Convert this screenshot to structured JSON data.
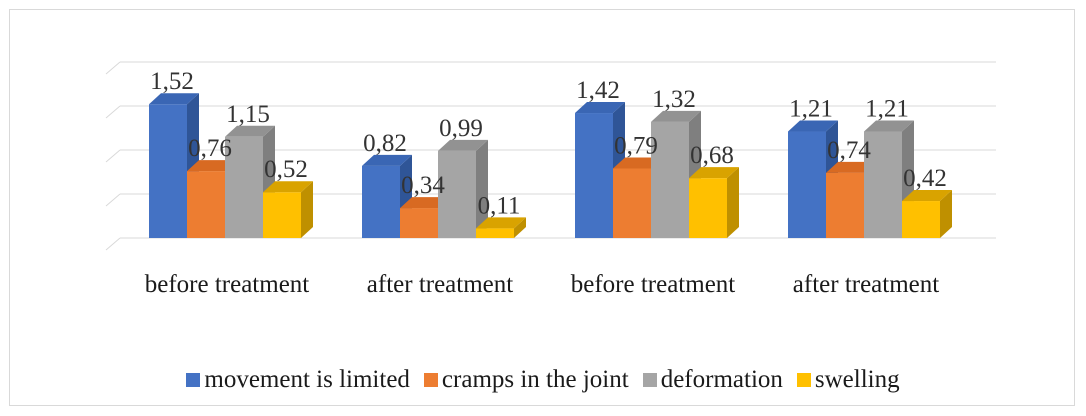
{
  "chart_data": {
    "type": "bar",
    "categories": [
      "before treatment",
      "after treatment",
      "before treatment",
      "after treatment"
    ],
    "series": [
      {
        "name": "movement is limited",
        "values": [
          1.52,
          0.82,
          1.42,
          1.21
        ],
        "labels": [
          "1,52",
          "0,82",
          "1,42",
          "1,21"
        ],
        "color": "#4472c4",
        "side": "#2f5597",
        "top": "#3a66b4"
      },
      {
        "name": "cramps in the joint",
        "values": [
          0.76,
          0.34,
          0.79,
          0.74
        ],
        "labels": [
          "0,76",
          "0,34",
          "0,79",
          "0,74"
        ],
        "color": "#ed7d31",
        "side": "#c55a11",
        "top": "#d86a22"
      },
      {
        "name": "deformation",
        "values": [
          1.15,
          0.99,
          1.32,
          1.21
        ],
        "labels": [
          "1,15",
          "0,99",
          "1,32",
          "1,21"
        ],
        "color": "#a5a5a5",
        "side": "#7f7f7f",
        "top": "#929292"
      },
      {
        "name": "swelling",
        "values": [
          0.52,
          0.11,
          0.68,
          0.42
        ],
        "labels": [
          "0,52",
          "0,11",
          "0,68",
          "0,42"
        ],
        "color": "#ffc000",
        "side": "#bf9000",
        "top": "#d9a300"
      }
    ],
    "ylim": [
      0,
      2
    ],
    "grid": true,
    "legend": "bottom",
    "style": "3d-clustered-column"
  }
}
